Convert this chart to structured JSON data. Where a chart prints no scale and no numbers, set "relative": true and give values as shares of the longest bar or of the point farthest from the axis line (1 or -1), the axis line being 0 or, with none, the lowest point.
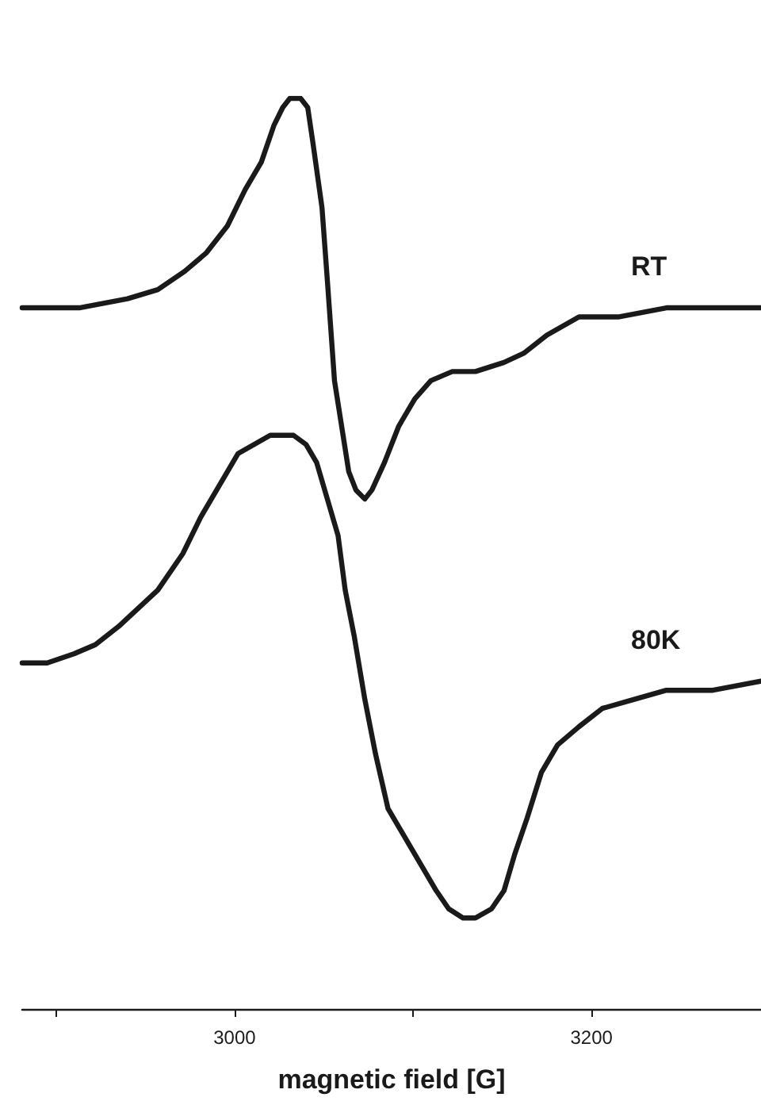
{
  "chart_data": {
    "type": "line",
    "xlabel": "magnetic field [G]",
    "relative": true,
    "xlim": [
      2881,
      3295
    ],
    "xticks": [
      {
        "value": 2900,
        "label": null
      },
      3000,
      {
        "value": 3100,
        "label": null
      },
      3200
    ],
    "grid": false,
    "legend": false,
    "marker": "none",
    "line_style": "solid",
    "series": [
      {
        "name": "RT",
        "color": "#1a1a1a",
        "x": [
          2881,
          2913,
          2940,
          2957,
          2972,
          2984,
          2996,
          3006,
          3015,
          3022,
          3027,
          3031,
          3037,
          3041,
          3044,
          3049,
          3052,
          3056,
          3060,
          3064,
          3068,
          3073,
          3077,
          3084,
          3092,
          3101,
          3110,
          3122,
          3135,
          3151,
          3162,
          3175,
          3193,
          3215,
          3242,
          3268,
          3295
        ],
        "values": [
          0.77,
          0.77,
          0.78,
          0.79,
          0.81,
          0.83,
          0.86,
          0.9,
          0.93,
          0.97,
          0.99,
          1.0,
          1.0,
          0.99,
          0.95,
          0.88,
          0.8,
          0.69,
          0.64,
          0.59,
          0.57,
          0.56,
          0.57,
          0.6,
          0.64,
          0.67,
          0.69,
          0.7,
          0.7,
          0.71,
          0.72,
          0.74,
          0.76,
          0.76,
          0.77,
          0.77,
          0.77
        ]
      },
      {
        "name": "80K",
        "color": "#1a1a1a",
        "x": [
          2881,
          2895,
          2910,
          2922,
          2935,
          2946,
          2957,
          2971,
          2981,
          2993,
          3002,
          3011,
          3020,
          3033,
          3040,
          3046,
          3052,
          3058,
          3062,
          3067,
          3073,
          3079,
          3086,
          3095,
          3104,
          3113,
          3120,
          3128,
          3135,
          3144,
          3151,
          3157,
          3164,
          3172,
          3181,
          3193,
          3206,
          3224,
          3242,
          3268,
          3295
        ],
        "values": [
          0.38,
          0.38,
          0.39,
          0.4,
          0.42,
          0.44,
          0.46,
          0.5,
          0.54,
          0.58,
          0.61,
          0.62,
          0.63,
          0.63,
          0.62,
          0.6,
          0.56,
          0.52,
          0.46,
          0.41,
          0.34,
          0.28,
          0.22,
          0.19,
          0.16,
          0.13,
          0.11,
          0.1,
          0.1,
          0.11,
          0.13,
          0.17,
          0.21,
          0.26,
          0.29,
          0.31,
          0.33,
          0.34,
          0.35,
          0.35,
          0.36
        ]
      }
    ]
  }
}
